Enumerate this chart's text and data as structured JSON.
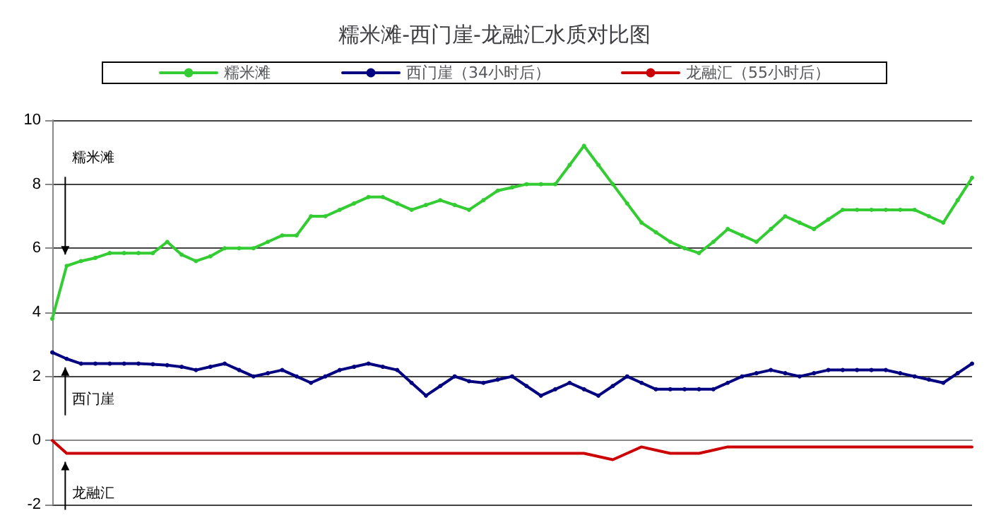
{
  "chart_data": {
    "type": "line",
    "title": "糯米滩-西门崖-龙融汇水质对比图",
    "categories": [
      null,
      null,
      null,
      null,
      null,
      null,
      null,
      null,
      null,
      null,
      null,
      null,
      null,
      null,
      null,
      null,
      null,
      null,
      null,
      null,
      null,
      null,
      null,
      null,
      null,
      null,
      null,
      null,
      null,
      null,
      null,
      null,
      null,
      null,
      null,
      null,
      null,
      null,
      null,
      null,
      null,
      null,
      null,
      null,
      null,
      null,
      null,
      null,
      null,
      null,
      null,
      null,
      null,
      null,
      null,
      null,
      null,
      null,
      null,
      null,
      null,
      null,
      null,
      null,
      null
    ],
    "series": [
      {
        "name": "糯米滩",
        "color": "#33cc33",
        "values": [
          3.8,
          5.45,
          5.6,
          5.7,
          5.85,
          5.85,
          5.85,
          5.85,
          6.2,
          5.8,
          5.6,
          5.75,
          6.0,
          6.0,
          6.0,
          6.2,
          6.4,
          6.4,
          7.0,
          7.0,
          7.2,
          7.4,
          7.6,
          7.6,
          7.4,
          7.2,
          7.35,
          7.5,
          7.35,
          7.2,
          7.5,
          7.8,
          7.9,
          8.0,
          8.0,
          8.0,
          8.6,
          9.2,
          8.6,
          8.0,
          7.4,
          6.8,
          6.5,
          6.2,
          6.0,
          5.85,
          6.2,
          6.6,
          6.4,
          6.2,
          6.6,
          7.0,
          6.8,
          6.6,
          6.9,
          7.2,
          7.2,
          7.2,
          7.2,
          7.2,
          7.2,
          7.0,
          6.8,
          7.5,
          8.2
        ]
      },
      {
        "name": "西门崖（34小时后）",
        "color": "#000080",
        "values": [
          2.75,
          2.55,
          2.4,
          2.4,
          2.4,
          2.4,
          2.4,
          2.38,
          2.35,
          2.3,
          2.2,
          2.3,
          2.4,
          2.2,
          2.0,
          2.1,
          2.2,
          2.0,
          1.8,
          2.0,
          2.2,
          2.3,
          2.4,
          2.3,
          2.2,
          1.8,
          1.4,
          1.7,
          2.0,
          1.85,
          1.8,
          1.9,
          2.0,
          1.7,
          1.4,
          1.6,
          1.8,
          1.6,
          1.4,
          1.7,
          2.0,
          1.8,
          1.6,
          1.6,
          1.6,
          1.6,
          1.6,
          1.8,
          2.0,
          2.1,
          2.2,
          2.1,
          2.0,
          2.1,
          2.2,
          2.2,
          2.2,
          2.2,
          2.2,
          2.1,
          2.0,
          1.9,
          1.8,
          2.1,
          2.4
        ]
      },
      {
        "name": "龙融汇（55小时后）",
        "color": "#cc0000",
        "marker": "none",
        "values": [
          0,
          -0.4,
          -0.4,
          -0.4,
          -0.4,
          -0.4,
          -0.4,
          -0.4,
          -0.4,
          -0.4,
          -0.4,
          -0.4,
          -0.4,
          -0.4,
          -0.4,
          -0.4,
          -0.4,
          -0.4,
          -0.4,
          -0.4,
          -0.4,
          -0.4,
          -0.4,
          -0.4,
          -0.4,
          -0.4,
          -0.4,
          -0.4,
          -0.4,
          -0.4,
          -0.4,
          -0.4,
          -0.4,
          -0.4,
          -0.4,
          -0.4,
          -0.4,
          -0.4,
          -0.5,
          -0.6,
          -0.4,
          -0.2,
          -0.3,
          -0.4,
          -0.4,
          -0.4,
          -0.3,
          -0.2,
          -0.2,
          -0.2,
          -0.2,
          -0.2,
          -0.2,
          -0.2,
          -0.2,
          -0.2,
          -0.2,
          -0.2,
          -0.2,
          -0.2,
          -0.2,
          -0.2,
          -0.2,
          -0.2,
          -0.2
        ]
      }
    ],
    "ylim": [
      -2,
      10
    ],
    "yticks": [
      -2,
      0,
      2,
      4,
      6,
      8,
      10
    ],
    "grid": "y",
    "legend": "top",
    "marker": "circle",
    "line_style": "solid",
    "tick_labels": "y",
    "annotations": [
      "糯米滩",
      "西门崖",
      "龙融汇"
    ]
  }
}
